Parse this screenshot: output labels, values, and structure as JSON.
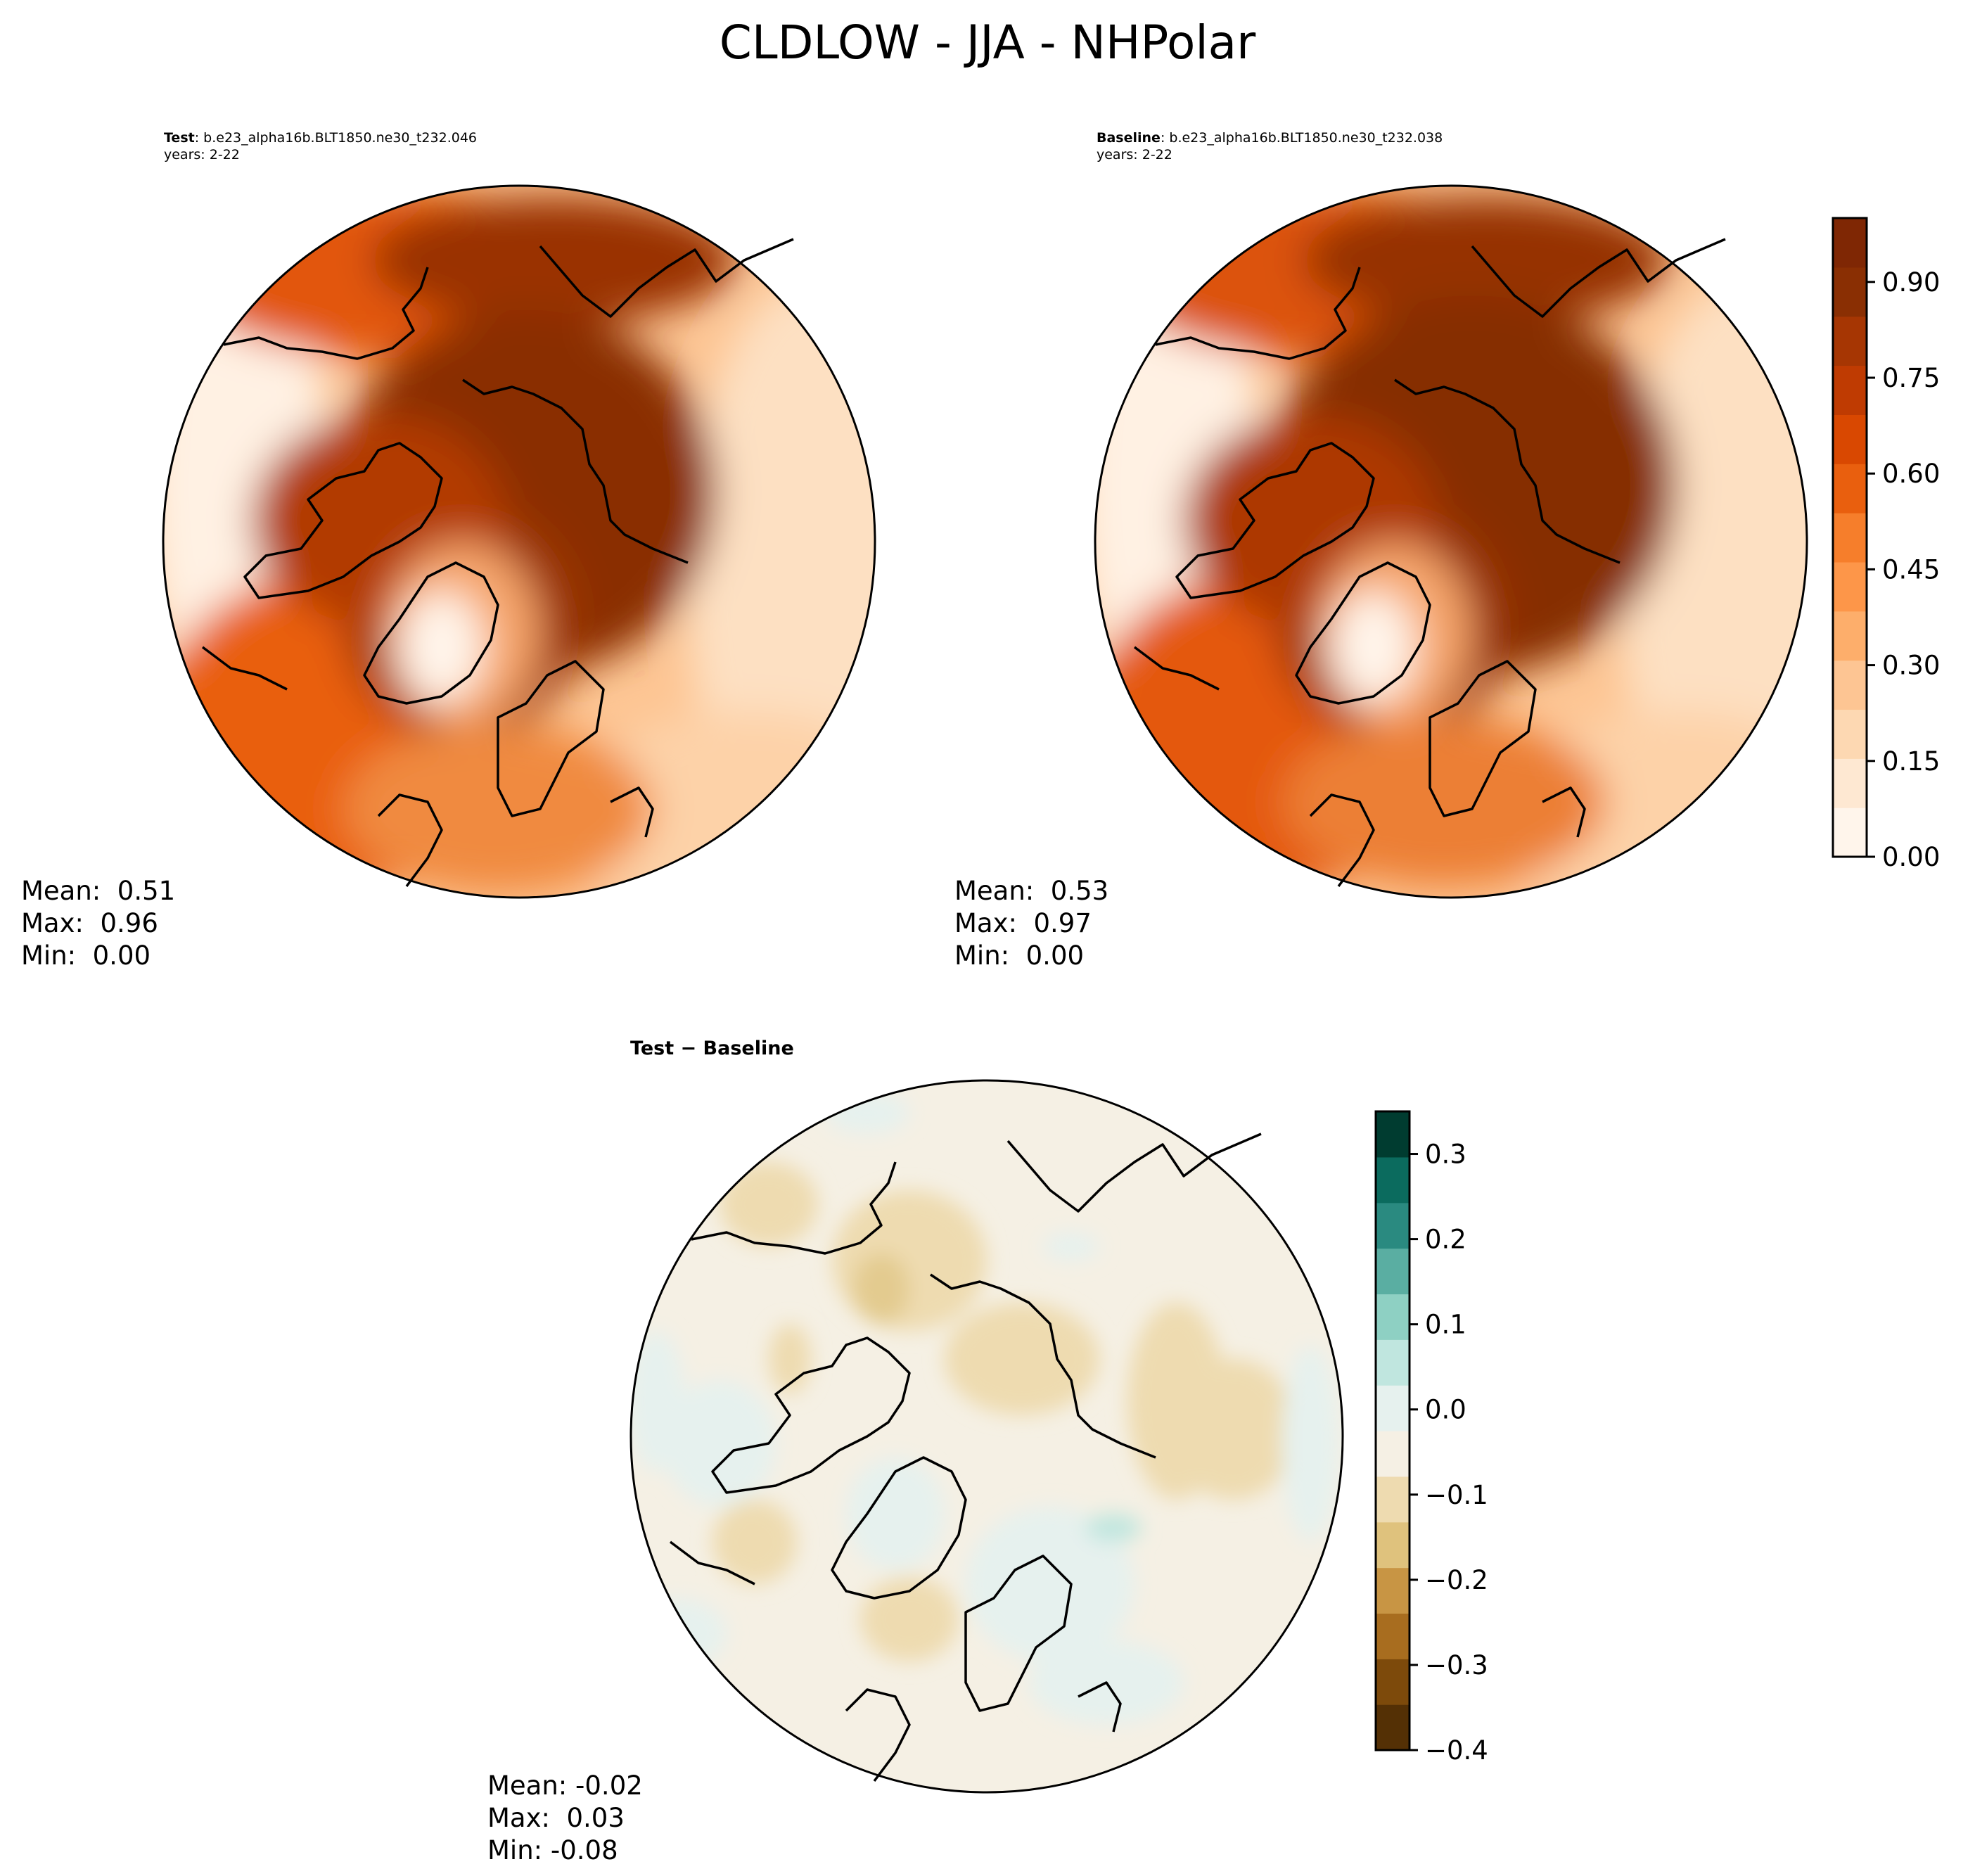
{
  "figure": {
    "title": "CLDLOW - JJA - NHPolar"
  },
  "palette": {
    "oranges": [
      "#fff5eb",
      "#fee8d2",
      "#fdd8b2",
      "#fdc593",
      "#fdae6b",
      "#fd9649",
      "#f67e2b",
      "#e95f0e",
      "#d94801",
      "#bf3b02",
      "#a63603",
      "#8a2f03",
      "#7f2704"
    ],
    "brbg": [
      "#543005",
      "#7d4a0b",
      "#a86d1f",
      "#c89544",
      "#dfc27d",
      "#eedbb0",
      "#f5f0e4",
      "#e6f1ee",
      "#c0e6df",
      "#8ed0c3",
      "#5aaea2",
      "#2a8a80",
      "#0b6b5e",
      "#003c30"
    ],
    "land_outline": "#000000"
  },
  "chart_data": [
    {
      "type": "heatmap",
      "name": "test-map",
      "projection": "north polar stereographic",
      "label_bold": "Test",
      "label_rest": ": b.e23_alpha16b.BLT1850.ne30_t232.046",
      "years": "years: 2-22",
      "stats": {
        "mean": "Mean:  0.51",
        "max": "Max:  0.96",
        "min": "Min:  0.00"
      },
      "value_range": [
        0.0,
        0.96
      ],
      "colormap": "Oranges"
    },
    {
      "type": "heatmap",
      "name": "baseline-map",
      "projection": "north polar stereographic",
      "label_bold": "Baseline",
      "label_rest": ": b.e23_alpha16b.BLT1850.ne30_t232.038",
      "years": "years: 2-22",
      "stats": {
        "mean": "Mean:  0.53",
        "max": "Max:  0.97",
        "min": "Min:  0.00"
      },
      "value_range": [
        0.0,
        0.97
      ],
      "colormap": "Oranges",
      "colorbar": {
        "range": [
          0.0,
          1.0
        ],
        "levels": 13,
        "ticks": [
          0.0,
          0.15,
          0.3,
          0.45,
          0.6,
          0.75,
          0.9
        ],
        "tick_labels": [
          "0.00",
          "0.15",
          "0.30",
          "0.45",
          "0.60",
          "0.75",
          "0.90"
        ]
      }
    },
    {
      "type": "heatmap",
      "name": "difference-map",
      "projection": "north polar stereographic",
      "title": "Test − Baseline",
      "stats": {
        "mean": "Mean: -0.02",
        "max": "Max:  0.03",
        "min": "Min: -0.08"
      },
      "value_range": [
        -0.08,
        0.03
      ],
      "colormap": "BrBG",
      "colorbar": {
        "range": [
          -0.4,
          0.35
        ],
        "levels": 14,
        "ticks": [
          -0.4,
          -0.3,
          -0.2,
          -0.1,
          0.0,
          0.1,
          0.2,
          0.3
        ],
        "tick_labels": [
          "−0.4",
          "−0.3",
          "−0.2",
          "−0.1",
          "0.0",
          "0.1",
          "0.2",
          "0.3"
        ]
      }
    }
  ]
}
